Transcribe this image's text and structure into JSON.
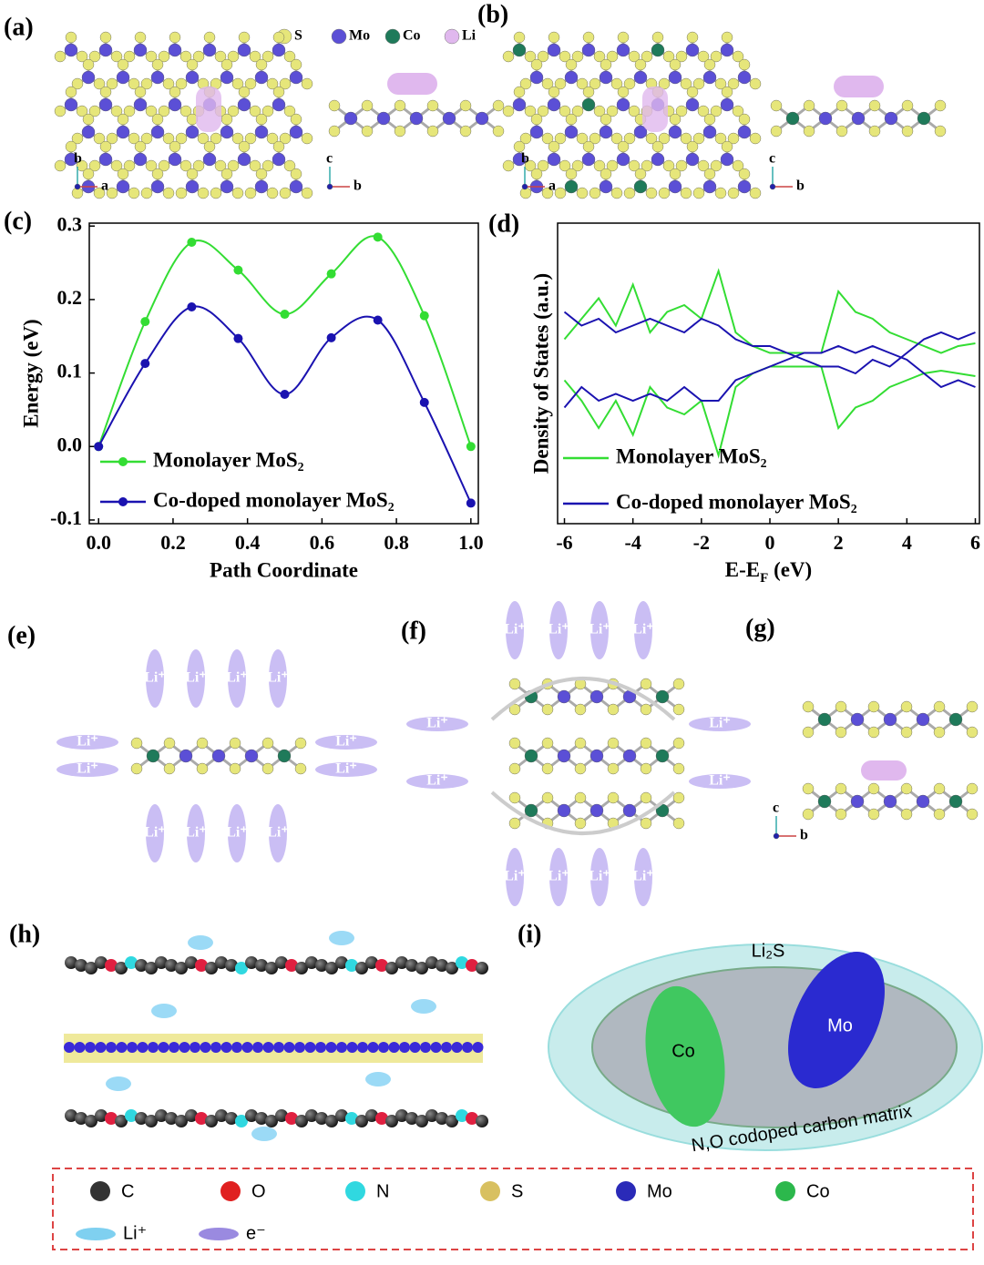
{
  "panel_labels": [
    "(a)",
    "(b)",
    "(c)",
    "(d)",
    "(e)",
    "(f)",
    "(g)",
    "(h)",
    "(i)"
  ],
  "atom_legend": [
    {
      "label": "S",
      "color": "#e6e67a"
    },
    {
      "label": "Mo",
      "color": "#5b4fd6"
    },
    {
      "label": "Co",
      "color": "#1f7a5a"
    },
    {
      "label": "Li",
      "color": "#e0b8ee"
    }
  ],
  "axis_names": [
    "a",
    "b",
    "c"
  ],
  "ion_label": "Li⁺",
  "chart_data": [
    {
      "type": "line",
      "xlabel": "Path Coordinate",
      "ylabel": "Energy (eV)",
      "x": [
        0,
        0.125,
        0.25,
        0.375,
        0.5,
        0.625,
        0.75,
        0.875,
        1.0
      ],
      "series": [
        {
          "name": "Monolayer MoS₂",
          "color": "#33dd33",
          "values": [
            0,
            0.17,
            0.278,
            0.24,
            0.18,
            0.235,
            0.285,
            0.178,
            0
          ]
        },
        {
          "name": "Co-doped monolayer MoS₂",
          "color": "#1a12b0",
          "values": [
            0,
            0.113,
            0.19,
            0.147,
            0.071,
            0.148,
            0.172,
            0.06,
            -0.077
          ]
        }
      ],
      "xlim": [
        -0.025,
        1.02
      ],
      "ylim": [
        -0.105,
        0.304
      ],
      "xticks": [
        {
          "value": 0,
          "label": "0.0"
        },
        0.2,
        0.4,
        0.6,
        0.8,
        {
          "value": 1,
          "label": "1.0"
        }
      ],
      "yticks": [
        -0.1,
        {
          "value": 0,
          "label": "0.0"
        },
        0.1,
        0.2,
        0.3
      ],
      "legend": "lower left"
    },
    {
      "type": "dos",
      "xlabel": [
        "E-E",
        "F",
        " (eV)"
      ],
      "ylabel": "Density of States (a.u.)",
      "x": [
        -6,
        -5.5,
        -5,
        -4.5,
        -4,
        -3.5,
        -3,
        -2.5,
        -2,
        -1.5,
        -1,
        -0.5,
        0,
        0.5,
        1,
        1.5,
        2,
        2.5,
        3,
        3.5,
        4,
        4.5,
        5,
        5.5,
        6
      ],
      "series": [
        {
          "name": "Monolayer MoS₂",
          "color": "#33dd33",
          "values": [
            0.15,
            0.3,
            0.45,
            0.25,
            0.55,
            0.2,
            0.35,
            0.4,
            0.3,
            0.65,
            0.2,
            0.1,
            0.05,
            0.05,
            0.05,
            0.05,
            0.5,
            0.35,
            0.3,
            0.2,
            0.15,
            0.1,
            0.05,
            0.1,
            0.12
          ],
          "values_down": [
            -0.15,
            -0.3,
            -0.5,
            -0.3,
            -0.55,
            -0.2,
            -0.35,
            -0.4,
            -0.3,
            -0.7,
            -0.2,
            -0.1,
            -0.05,
            -0.05,
            -0.05,
            -0.05,
            -0.5,
            -0.35,
            -0.3,
            -0.2,
            -0.15,
            -0.1,
            -0.08,
            -0.1,
            -0.12
          ]
        },
        {
          "name": "Co-doped monolayer MoS₂",
          "color": "#1a12b0",
          "values": [
            0.35,
            0.25,
            0.3,
            0.2,
            0.25,
            0.3,
            0.25,
            0.2,
            0.3,
            0.25,
            0.15,
            0.1,
            0.1,
            0.05,
            0,
            -0.05,
            -0.05,
            -0.1,
            0,
            -0.05,
            0.05,
            0.15,
            0.2,
            0.15,
            0.2
          ],
          "values_down": [
            -0.35,
            -0.2,
            -0.3,
            -0.25,
            -0.3,
            -0.25,
            -0.3,
            -0.2,
            -0.3,
            -0.3,
            -0.15,
            -0.1,
            -0.05,
            0,
            0.05,
            0.05,
            0.1,
            0.05,
            0.1,
            0.05,
            0,
            -0.1,
            -0.2,
            -0.15,
            -0.2
          ]
        }
      ],
      "xlim": [
        -6.2,
        6.12
      ],
      "ylim": [
        -1.2,
        1.0
      ],
      "xticks": [
        -6,
        -4,
        -2,
        0,
        2,
        4,
        6
      ],
      "legend": "lower left"
    }
  ],
  "panel_i": {
    "product": "Li₂S",
    "co": "Co",
    "mo": "Mo",
    "matrix": "N,O codoped carbon matrix"
  },
  "legend": [
    {
      "label": "C",
      "color": "#333333"
    },
    {
      "label": "O",
      "color": "#e02020"
    },
    {
      "label": "N",
      "color": "#30d8e0"
    },
    {
      "label": "S",
      "color": "#d8c060"
    },
    {
      "label": "Mo",
      "color": "#2a2ab8"
    },
    {
      "label": "Co",
      "color": "#2cb84c"
    }
  ],
  "legend_ions": [
    {
      "label": "Li⁺",
      "color": "#7fd0f0"
    },
    {
      "label": "e⁻",
      "color": "#9a8ae0"
    }
  ]
}
